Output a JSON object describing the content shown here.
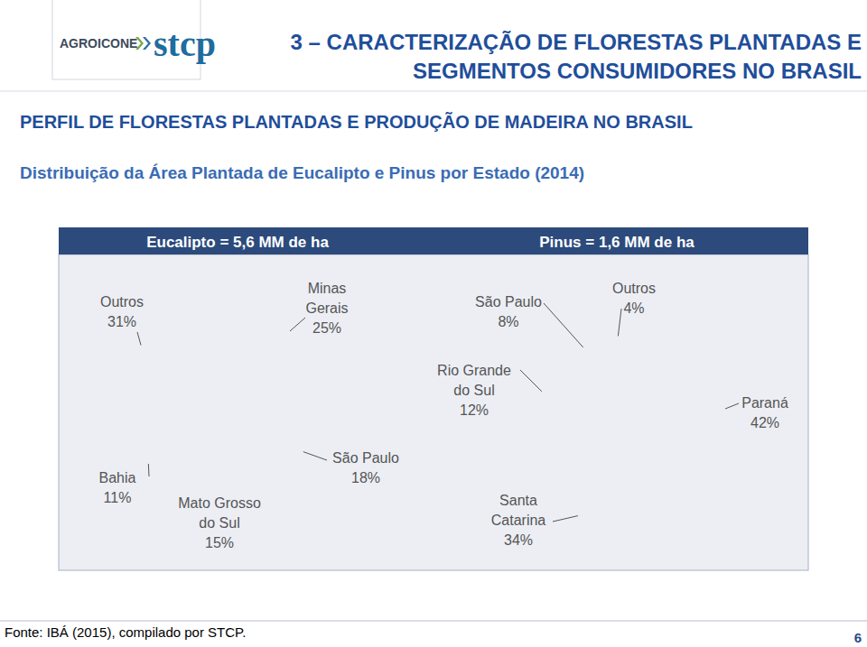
{
  "header": {
    "logo_left": "AGROICONE",
    "logo_right": "stcp",
    "title_lines": [
      "3 – CARACTERIZAÇÃO DE FLORESTAS PLANTADAS E",
      "SEGMENTOS CONSUMIDORES NO BRASIL"
    ],
    "section": "PERFIL DE FLORESTAS PLANTADAS E PRODUÇÃO DE MADEIRA NO BRASIL",
    "subtitle": "Distribuição da Área Plantada de Eucalipto e Pinus por Estado (2014)"
  },
  "chart_data": [
    {
      "type": "pie",
      "title": "Eucalipto = 5,6 MM de ha",
      "categories": [
        "Minas Gerais",
        "São Paulo",
        "Mato Grosso do Sul",
        "Bahia",
        "Outros"
      ],
      "values": [
        25,
        18,
        15,
        11,
        31
      ],
      "value_labels": [
        "25%",
        "18%",
        "15%",
        "11%",
        "31%"
      ],
      "colors": [
        "#2b4673",
        "#30518a",
        "#3a61a0",
        "#8c9bbd",
        "#b5bdd3"
      ],
      "data_labels": true
    },
    {
      "type": "pie",
      "title": "Pinus = 1,6 MM de ha",
      "categories": [
        "Paraná",
        "Santa Catarina",
        "Rio Grande do Sul",
        "São Paulo",
        "Outros"
      ],
      "values": [
        42,
        34,
        12,
        8,
        4
      ],
      "value_labels": [
        "42%",
        "34%",
        "12%",
        "8%",
        "4%"
      ],
      "colors": [
        "#2b4673",
        "#31538b",
        "#3a61a0",
        "#8c9bbd",
        "#c1c7d9"
      ],
      "data_labels": true
    }
  ],
  "footer": {
    "source": "Fonte: IBÁ (2015), compilado por STCP.",
    "page": "6"
  }
}
